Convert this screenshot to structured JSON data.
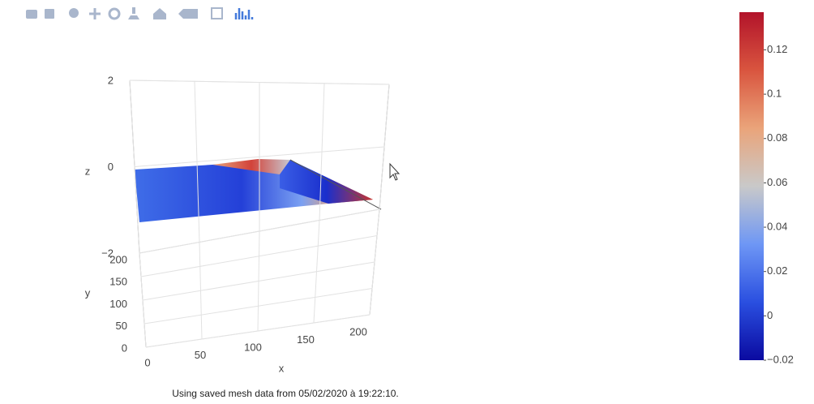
{
  "chart_data": {
    "type": "surface",
    "zlabel": "z",
    "ylabel": "y",
    "xlabel": "x",
    "zlim": [
      -2,
      2
    ],
    "zticks": [
      2,
      0,
      {
        "value": -2,
        "label": "−2"
      }
    ],
    "ylim": [
      0,
      200
    ],
    "yticks": [
      0,
      50,
      100,
      150,
      200
    ],
    "xlim": [
      0,
      200
    ],
    "xticks": [
      0,
      50,
      100,
      150,
      200
    ],
    "grid": true,
    "colorscale": [
      "#0a0aa0",
      "#2a4fe0",
      "#6e97f5",
      "#c9c9c9",
      "#eaa47a",
      "#d9553f",
      "#b2132a"
    ],
    "clim": [
      -0.02,
      0.137
    ],
    "cticks": [
      {
        "value": -0.02,
        "label": "−0.02"
      },
      0,
      0.02,
      0.04,
      0.06,
      0.08,
      0.1,
      0.12
    ],
    "caption": "Using saved mesh data from 05/02/2020 à 19:22:10."
  }
}
